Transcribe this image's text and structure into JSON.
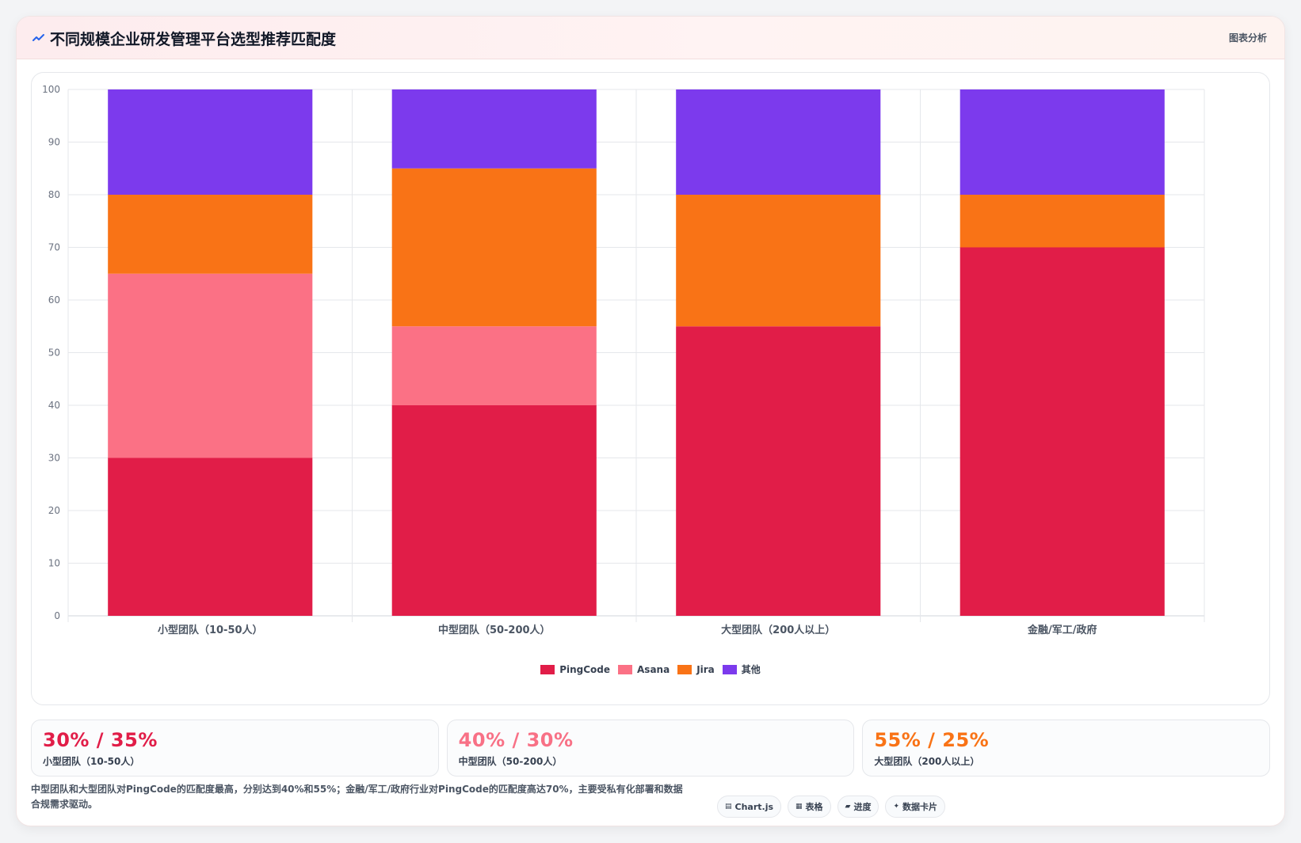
{
  "header": {
    "title": "不同规模企业研发管理平台选型推荐匹配度",
    "tag": "图表分析",
    "icon": "trend-line-icon"
  },
  "chart_data": {
    "type": "bar",
    "stacked": true,
    "categories": [
      "小型团队（10-50人）",
      "中型团队（50-200人）",
      "大型团队（200人以上）",
      "金融/军工/政府"
    ],
    "series": [
      {
        "name": "PingCode",
        "color": "#e11d48",
        "values": [
          30,
          40,
          55,
          70
        ]
      },
      {
        "name": "Asana",
        "color": "#fb7185",
        "values": [
          35,
          15,
          0,
          0
        ]
      },
      {
        "name": "Jira",
        "color": "#f97316",
        "values": [
          15,
          30,
          25,
          10
        ]
      },
      {
        "name": "其他",
        "color": "#7c3aed",
        "values": [
          20,
          15,
          20,
          20
        ]
      }
    ],
    "ylim": [
      0,
      100
    ],
    "yticks": [
      "0",
      "10",
      "20",
      "30",
      "40",
      "50",
      "60",
      "70",
      "80",
      "90",
      "100"
    ],
    "grid": true,
    "legend_position": "bottom"
  },
  "stats": [
    {
      "value": "30% / 35%",
      "label": "小型团队（10-50人）",
      "color": "#e11d48"
    },
    {
      "value": "40% / 30%",
      "label": "中型团队（50-200人）",
      "color": "#f87186"
    },
    {
      "value": "55% / 25%",
      "label": "大型团队（200人以上）",
      "color": "#f97316"
    }
  ],
  "footer": {
    "note": "中型团队和大型团队对PingCode的匹配度最高，分别达到40%和55%；金融/军工/政府行业对PingCode的匹配度高达70%，主要受私有化部署和数据合规需求驱动。",
    "chips": [
      {
        "icon": "chart-icon",
        "glyph": "▤",
        "label": "Chart.js"
      },
      {
        "icon": "table-icon",
        "glyph": "▦",
        "label": "表格"
      },
      {
        "icon": "progress-icon",
        "glyph": "▰",
        "label": "进度"
      },
      {
        "icon": "data-card-icon",
        "glyph": "✦",
        "label": "数据卡片"
      }
    ]
  }
}
